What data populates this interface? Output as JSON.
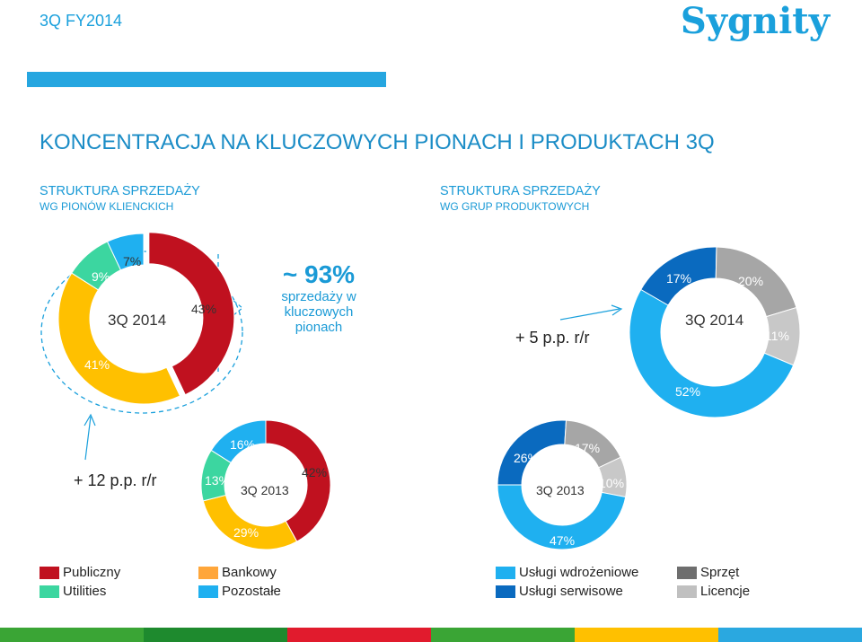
{
  "header": {
    "period": "3Q FY2014",
    "logo": "Sygnity"
  },
  "title": "KONCENTRACJA NA KLUCZOWYCH PIONACH I PRODUKTACH 3Q",
  "left_section": {
    "title": "STRUKTURA SPRZEDAŻY",
    "subtitle": "WG PIONÓW KLIENCKICH"
  },
  "right_section": {
    "title": "STRUKTURA SPRZEDAŻY",
    "subtitle": "WG GRUP PRODUKTOWYCH"
  },
  "callout": {
    "value": "~ 93%",
    "text_line1": "sprzedaży w",
    "text_line2": "kluczowych",
    "text_line3": "pionach"
  },
  "changes": {
    "right": "+ 5 p.p. r/r",
    "left": "+ 12 p.p. r/r"
  },
  "colors": {
    "publiczny": "#c0111f",
    "utilities": "#3cd6a0",
    "bankowy": "#ffc000",
    "pozostale": "#1fb0f0",
    "wdrozeniowe": "#1fb0f0",
    "serwisowe": "#0a6abf",
    "sprzet": "#a6a6a6",
    "licencje": "#c8c8c8"
  },
  "chart_data": [
    {
      "type": "pie",
      "title": "3Q 2014",
      "categories": [
        "Publiczny",
        "Bankowy",
        "Utilities",
        "Pozostałe"
      ],
      "values": [
        43,
        41,
        9,
        7
      ],
      "labels": [
        "43%",
        "41%",
        "9%",
        "7%"
      ]
    },
    {
      "type": "pie",
      "title": "3Q 2013",
      "categories": [
        "Publiczny",
        "Bankowy",
        "Utilities",
        "Pozostałe"
      ],
      "values": [
        42,
        29,
        13,
        16
      ],
      "labels": [
        "42%",
        "29%",
        "13%",
        "16%"
      ]
    },
    {
      "type": "pie",
      "title": "3Q 2014",
      "categories": [
        "Usługi serwisowe",
        "Sprzęt",
        "Licencje",
        "Usługi wdrożeniowe"
      ],
      "values": [
        17,
        20,
        11,
        52
      ],
      "labels": [
        "17%",
        "20%",
        "11%",
        "52%"
      ]
    },
    {
      "type": "pie",
      "title": "3Q 2013",
      "categories": [
        "Usługi serwisowe",
        "Sprzęt",
        "Licencje",
        "Usługi wdrożeniowe"
      ],
      "values": [
        26,
        17,
        10,
        47
      ],
      "labels": [
        "26%",
        "17%",
        "10%",
        "47%"
      ]
    }
  ],
  "legend_left": [
    {
      "label": "Publiczny",
      "color": "#c0111f"
    },
    {
      "label": "Utilities",
      "color": "#3cd6a0"
    },
    {
      "label": "Bankowy",
      "color": "#ffa63a"
    },
    {
      "label": "Pozostałe",
      "color": "#1fb0f0"
    }
  ],
  "legend_right": [
    {
      "label": "Usługi wdrożeniowe",
      "color": "#1fb0f0"
    },
    {
      "label": "Usługi serwisowe",
      "color": "#0a6abf"
    },
    {
      "label": "Sprzęt",
      "color": "#6e6e6e"
    },
    {
      "label": "Licencje",
      "color": "#c0c0c0"
    }
  ],
  "footer_colors": [
    "#3aa535",
    "#1e8a2e",
    "#e11b2d",
    "#3aa535",
    "#ffc000",
    "#2aa8e0"
  ]
}
